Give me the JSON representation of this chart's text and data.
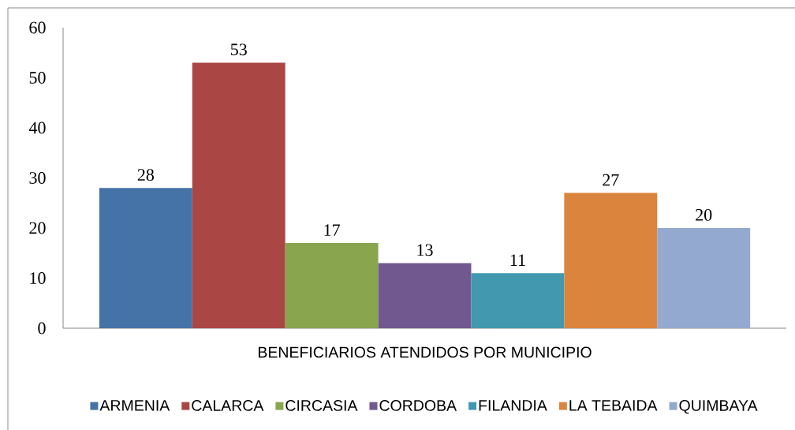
{
  "chart_data": {
    "type": "bar",
    "categories": [
      "BENEFICIARIOS ATENDIDOS POR MUNICIPIO"
    ],
    "series": [
      {
        "name": "ARMENIA",
        "color": "#4572a7",
        "values": [
          28
        ]
      },
      {
        "name": "CALARCA",
        "color": "#aa4643",
        "values": [
          53
        ]
      },
      {
        "name": "CIRCASIA",
        "color": "#89a54e",
        "values": [
          17
        ]
      },
      {
        "name": "CORDOBA",
        "color": "#71588f",
        "values": [
          13
        ]
      },
      {
        "name": "FILANDIA",
        "color": "#4198af",
        "values": [
          11
        ]
      },
      {
        "name": "LA TEBAIDA",
        "color": "#db843d",
        "values": [
          27
        ]
      },
      {
        "name": "QUIMBAYA",
        "color": "#93a9cf",
        "values": [
          20
        ]
      }
    ],
    "ylim": [
      0,
      60
    ],
    "yticks": [
      0,
      10,
      20,
      30,
      40,
      50,
      60
    ],
    "data_labels": true,
    "legend": "bottom"
  }
}
